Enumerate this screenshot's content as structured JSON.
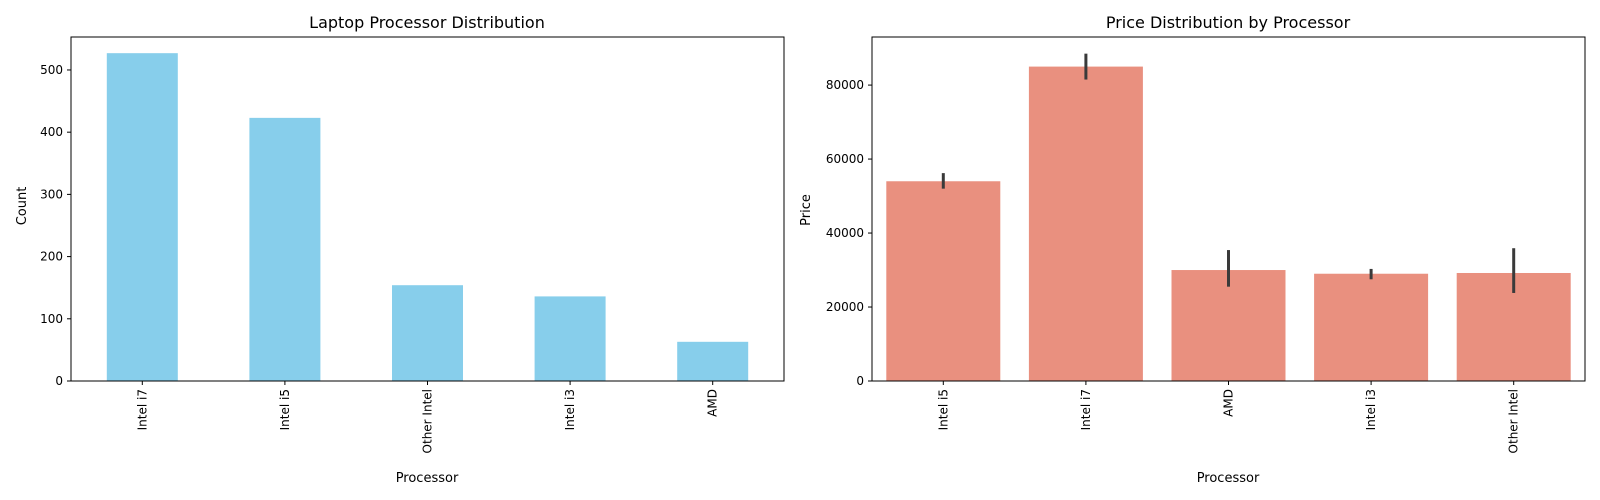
{
  "chart_data": [
    {
      "type": "bar",
      "title": "Laptop Processor Distribution",
      "xlabel": "Processor",
      "ylabel": "Count",
      "categories": [
        "Intel i7",
        "Intel i5",
        "Other Intel",
        "Intel i3",
        "AMD"
      ],
      "values": [
        527,
        423,
        154,
        136,
        63
      ],
      "ylim": [
        0,
        553
      ],
      "yticks": [
        0,
        100,
        200,
        300,
        400,
        500
      ],
      "color": "#87ceeb",
      "grid": false,
      "legend": "none"
    },
    {
      "type": "bar",
      "title": "Price Distribution by Processor",
      "xlabel": "Processor",
      "ylabel": "Price",
      "categories": [
        "Intel i5",
        "Intel i7",
        "AMD",
        "Intel i3",
        "Other Intel"
      ],
      "values": [
        54000,
        85000,
        30000,
        29000,
        29200
      ],
      "error_low": [
        52000,
        81500,
        25500,
        27500,
        23800
      ],
      "error_high": [
        56200,
        88500,
        35400,
        30300,
        35900
      ],
      "ylim": [
        0,
        93000
      ],
      "yticks": [
        0,
        20000,
        40000,
        60000,
        80000
      ],
      "color": "#e9907f",
      "error_color": "#3a3a3a",
      "grid": false,
      "legend": "none"
    }
  ]
}
